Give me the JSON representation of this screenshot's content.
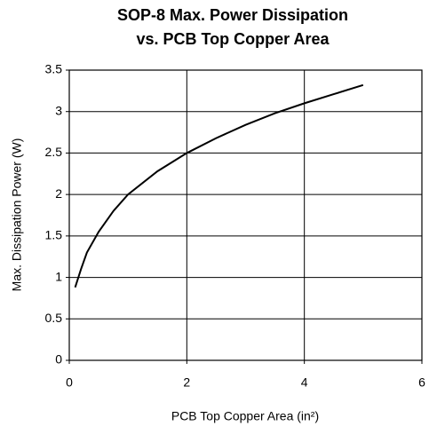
{
  "chart_data": {
    "type": "line",
    "title": [
      "SOP-8 Max. Power Dissipation",
      "vs. PCB Top Copper Area"
    ],
    "xlabel": "PCB Top Copper Area (in²)",
    "ylabel": "Max. Dissipation Power (W)",
    "x": [
      0.1,
      0.2,
      0.3,
      0.5,
      0.75,
      1,
      1.5,
      2,
      2.5,
      3,
      3.5,
      4,
      4.5,
      5
    ],
    "values": [
      0.88,
      1.1,
      1.3,
      1.55,
      1.8,
      2.0,
      2.28,
      2.5,
      2.68,
      2.84,
      2.98,
      3.1,
      3.21,
      3.32
    ],
    "color": "#000000",
    "xlim": [
      0,
      6
    ],
    "xticks": [
      0,
      2,
      4,
      6
    ],
    "ylim": [
      0,
      3.5
    ],
    "yticks": [
      0,
      0.5,
      1,
      1.5,
      2,
      2.5,
      3,
      3.5
    ],
    "grid": true
  }
}
